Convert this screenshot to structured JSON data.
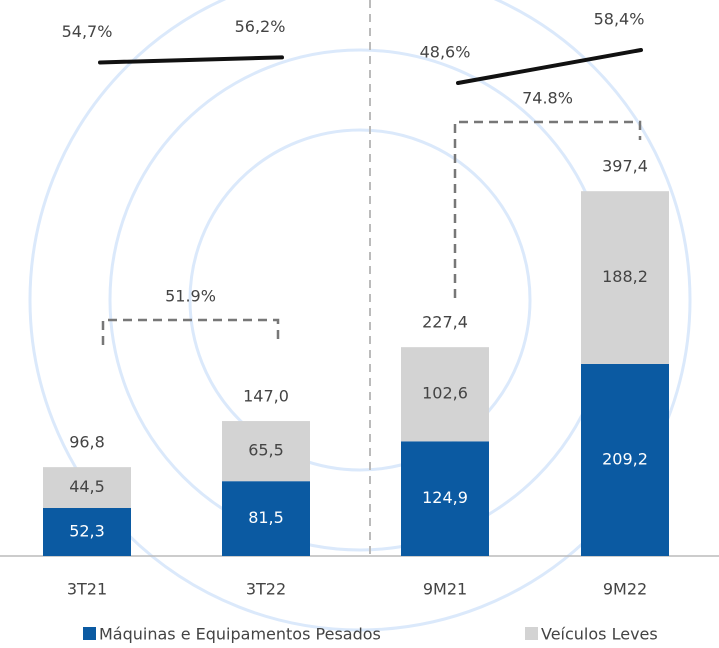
{
  "chart_data": {
    "type": "bar",
    "categories": [
      "3T21",
      "3T22",
      "9M21",
      "9M22"
    ],
    "series": [
      {
        "name": "Máquinas e Equipamentos Pesados",
        "color": "#0b5aa2",
        "values": [
          52.3,
          81.5,
          124.9,
          209.2
        ],
        "value_labels": [
          "52,3",
          "81,5",
          "124,9",
          "209,2"
        ]
      },
      {
        "name": "Veículos Leves",
        "color": "#d3d3d3",
        "values": [
          44.5,
          65.5,
          102.6,
          188.2
        ],
        "value_labels": [
          "44,5",
          "65,5",
          "102,6",
          "188,2"
        ]
      }
    ],
    "totals": {
      "values": [
        96.8,
        147.0,
        227.4,
        397.4
      ],
      "value_labels": [
        "96,8",
        "147,0",
        "227,4",
        "397,4"
      ]
    },
    "margin": {
      "values": [
        54.7,
        56.2,
        48.6,
        58.4
      ],
      "value_labels": [
        "54,7%",
        "56,2%",
        "48,6%",
        "58,4%"
      ],
      "color": "#111111"
    },
    "growth": [
      {
        "value": 51.9,
        "label": "51.9%"
      },
      {
        "value": 74.8,
        "label": "74.8%"
      }
    ]
  }
}
